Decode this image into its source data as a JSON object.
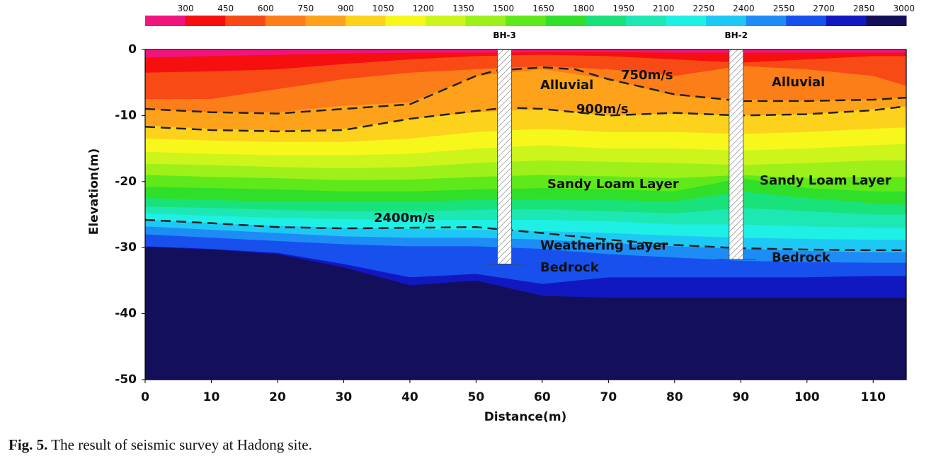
{
  "chart_data": {
    "type": "contour",
    "xlabel": "Distance(m)",
    "ylabel": "Elevation(m)",
    "xlim": [
      0,
      115
    ],
    "ylim": [
      -50,
      0
    ],
    "xticks": [
      0,
      10,
      20,
      30,
      40,
      50,
      60,
      70,
      80,
      90,
      100,
      110
    ],
    "yticks": [
      0,
      -10,
      -20,
      -30,
      -40,
      -50
    ],
    "colorbar": {
      "ticks": [
        300,
        450,
        600,
        750,
        900,
        1050,
        1200,
        1350,
        1500,
        1650,
        1800,
        1950,
        2100,
        2250,
        2400,
        2550,
        2700,
        2850,
        3000
      ],
      "colors": [
        "#f0157e",
        "#f50f0f",
        "#f84a14",
        "#fb7e18",
        "#fda21a",
        "#fdd21c",
        "#f8f71c",
        "#cdf51c",
        "#9ef01a",
        "#5fe81a",
        "#2fdf2a",
        "#19e27a",
        "#1de8b4",
        "#1ef0e6",
        "#1ec8f5",
        "#1e8cf5",
        "#1850ee",
        "#1218c0",
        "#130f5a"
      ]
    },
    "contour_x": [
      0,
      10,
      20,
      30,
      40,
      50,
      60,
      70,
      80,
      90,
      100,
      110,
      115
    ],
    "contours": [
      [
        -1.2,
        -1,
        -0.8,
        -0.6,
        -0.5,
        -0.5,
        -0.4,
        -0.4,
        -0.5,
        -0.5,
        -0.5,
        -0.5,
        -0.5
      ],
      [
        -3.5,
        -3.3,
        -3,
        -2.2,
        -1.5,
        -1,
        -0.8,
        -1,
        -1.5,
        -2,
        -1.5,
        -1,
        -1
      ],
      [
        -7.5,
        -7.5,
        -6,
        -4.5,
        -3.5,
        -3,
        -2.5,
        -3,
        -4,
        -2.5,
        -3,
        -4,
        -5.5
      ],
      [
        -9,
        -9.5,
        -9.5,
        -8.5,
        -8,
        -4,
        -3,
        -4.5,
        -7,
        -7.5,
        -7.8,
        -7.5,
        -7.3
      ],
      [
        -11.5,
        -12,
        -12.3,
        -12,
        -10.5,
        -9.5,
        -9,
        -10,
        -9.7,
        -10,
        -9.8,
        -9,
        -8.6
      ],
      [
        -13.5,
        -13.8,
        -14,
        -14,
        -13.5,
        -12.5,
        -12,
        -12.5,
        -12.5,
        -12.8,
        -12.5,
        -12,
        -11.8
      ],
      [
        -15.5,
        -15.8,
        -16,
        -16,
        -15.8,
        -15,
        -14.5,
        -15,
        -15,
        -15.3,
        -15,
        -14.5,
        -14.3
      ],
      [
        -17.3,
        -17.5,
        -17.8,
        -18,
        -17.8,
        -17.2,
        -16.8,
        -17,
        -17.2,
        -17.5,
        -17.2,
        -16.8,
        -16.8
      ],
      [
        -19,
        -19.3,
        -19.5,
        -19.8,
        -19.7,
        -19.3,
        -19,
        -19.2,
        -19.5,
        -19,
        -19.5,
        -19.3,
        -19.3
      ],
      [
        -20.8,
        -21,
        -21.2,
        -21.5,
        -21.5,
        -21.2,
        -21,
        -21.2,
        -21.5,
        -19.5,
        -21,
        -21.5,
        -21.5
      ],
      [
        -22.5,
        -22.8,
        -23,
        -23,
        -23,
        -22.8,
        -22.7,
        -22.8,
        -23,
        -21.5,
        -22.5,
        -23.3,
        -23.5
      ],
      [
        -23.8,
        -24,
        -24.3,
        -24.5,
        -24.5,
        -24.3,
        -24.2,
        -24.5,
        -24.8,
        -24,
        -24.5,
        -25,
        -25
      ],
      [
        -24.8,
        -25.2,
        -25.5,
        -25.7,
        -25.8,
        -25.8,
        -25.8,
        -26,
        -26.5,
        -26.5,
        -26.8,
        -27,
        -27
      ],
      [
        -25.8,
        -26.3,
        -26.7,
        -27,
        -27.2,
        -27.3,
        -27.5,
        -27.8,
        -28.2,
        -28.5,
        -28.7,
        -28.8,
        -28.8
      ],
      [
        -26.8,
        -27.3,
        -27.8,
        -28.3,
        -28.5,
        -28.5,
        -28.8,
        -29.3,
        -29.8,
        -30.2,
        -30.5,
        -30.7,
        -30.7
      ],
      [
        -28,
        -28.5,
        -29,
        -29.5,
        -29.8,
        -29.8,
        -30.2,
        -31,
        -31.5,
        -32,
        -32.2,
        -32.3,
        -32.3
      ],
      [
        -29.8,
        -30.2,
        -30.8,
        -32.5,
        -34.5,
        -34,
        -35.5,
        -34.5,
        -34.5,
        -34.5,
        -34.5,
        -34.3,
        -34.3
      ],
      [
        -29.9,
        -30.3,
        -31,
        -33,
        -35.7,
        -35,
        -37.3,
        -37.6,
        -37.6,
        -37.6,
        -37.6,
        -37.6,
        -37.6
      ]
    ],
    "dashed_lines": [
      {
        "x": [
          0,
          10,
          20,
          30,
          40,
          50,
          53,
          60,
          65,
          70,
          80,
          90,
          100,
          110,
          115
        ],
        "y": [
          -9,
          -9.5,
          -9.7,
          -9,
          -8.3,
          -4,
          -3.2,
          -2.7,
          -3,
          -4.5,
          -6.8,
          -7.8,
          -7.8,
          -7.6,
          -7.3
        ]
      },
      {
        "x": [
          0,
          10,
          20,
          30,
          40,
          50,
          55,
          60,
          70,
          80,
          90,
          100,
          110,
          115
        ],
        "y": [
          -11.7,
          -12.2,
          -12.4,
          -12.2,
          -10.5,
          -9.3,
          -8.8,
          -9,
          -10,
          -9.6,
          -10,
          -9.8,
          -9.2,
          -8.6
        ]
      },
      {
        "x": [
          0,
          10,
          20,
          30,
          40,
          50,
          60,
          70,
          80,
          90,
          100,
          110,
          115
        ],
        "y": [
          -25.8,
          -26.3,
          -26.9,
          -27.1,
          -27,
          -26.9,
          -27.8,
          -28.8,
          -29.6,
          -30.1,
          -30.3,
          -30.4,
          -30.4
        ]
      }
    ],
    "boreholes": [
      {
        "name": "BH-3",
        "x": 54.3,
        "depth": -32.5
      },
      {
        "name": "BH-2",
        "x": 89.3,
        "depth": -31.8
      }
    ],
    "annotations": [
      "750m/s",
      "Alluvial",
      "900m/s",
      "Alluvial",
      "Sandy Loam Layer",
      "Sandy Loam Layer",
      "2400m/s",
      "Weathering Layer",
      "Bedrock",
      "Bedrock"
    ],
    "caption": {
      "label": "Fig. 5.",
      "text": "The result of seismic survey at Hadong site."
    }
  }
}
